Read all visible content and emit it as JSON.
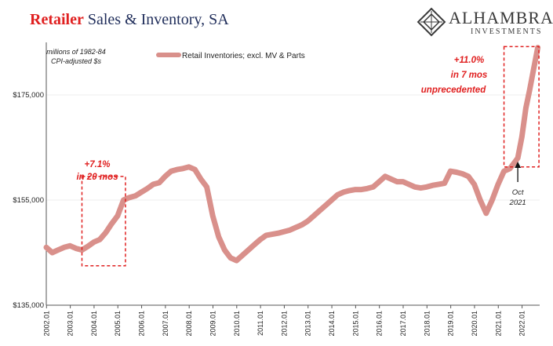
{
  "header": {
    "title_accent": "Retailer",
    "title_rest": " Sales & Inventory, SA",
    "logo_name": "ALHAMBRA",
    "logo_sub": "INVESTMENTS"
  },
  "chart_data": {
    "type": "line",
    "units_note_line1": "millions of 1982-84",
    "units_note_line2": "CPI-adjusted $s",
    "ylim": [
      135000,
      185000
    ],
    "y_ticks": [
      135000,
      155000,
      175000
    ],
    "y_tick_labels": [
      "$135,000",
      "$155,000",
      "$175,000"
    ],
    "x_ticks": [
      "2002.01",
      "2003.01",
      "2004.01",
      "2005.01",
      "2006.01",
      "2007.01",
      "2008.01",
      "2009.01",
      "2010.01",
      "2011.01",
      "2012.01",
      "2013.01",
      "2014.01",
      "2015.01",
      "2016.01",
      "2017.01",
      "2018.01",
      "2019.01",
      "2020.01",
      "2021.01",
      "2022.01"
    ],
    "series": [
      {
        "name": "Retail Inventories; excl. MV & Parts",
        "color": "#d9908b",
        "points": [
          [
            2002.0,
            146000
          ],
          [
            2002.25,
            145000
          ],
          [
            2002.5,
            145500
          ],
          [
            2002.75,
            146000
          ],
          [
            2003.0,
            146300
          ],
          [
            2003.25,
            145800
          ],
          [
            2003.5,
            145500
          ],
          [
            2003.75,
            146200
          ],
          [
            2004.0,
            147000
          ],
          [
            2004.25,
            147500
          ],
          [
            2004.5,
            148800
          ],
          [
            2004.75,
            150500
          ],
          [
            2005.0,
            152000
          ],
          [
            2005.25,
            155000
          ],
          [
            2005.5,
            155500
          ],
          [
            2005.75,
            155800
          ],
          [
            2006.0,
            156500
          ],
          [
            2006.25,
            157200
          ],
          [
            2006.5,
            158000
          ],
          [
            2006.75,
            158300
          ],
          [
            2007.0,
            159500
          ],
          [
            2007.25,
            160500
          ],
          [
            2007.5,
            160800
          ],
          [
            2007.75,
            161000
          ],
          [
            2008.0,
            161300
          ],
          [
            2008.25,
            160800
          ],
          [
            2008.5,
            159000
          ],
          [
            2008.75,
            157500
          ],
          [
            2009.0,
            152000
          ],
          [
            2009.25,
            148000
          ],
          [
            2009.5,
            145500
          ],
          [
            2009.75,
            144000
          ],
          [
            2010.0,
            143500
          ],
          [
            2010.25,
            144500
          ],
          [
            2010.5,
            145500
          ],
          [
            2010.75,
            146500
          ],
          [
            2011.0,
            147500
          ],
          [
            2011.25,
            148300
          ],
          [
            2011.5,
            148500
          ],
          [
            2011.75,
            148700
          ],
          [
            2012.0,
            149000
          ],
          [
            2012.25,
            149300
          ],
          [
            2012.5,
            149800
          ],
          [
            2012.75,
            150300
          ],
          [
            2013.0,
            151000
          ],
          [
            2013.25,
            152000
          ],
          [
            2013.5,
            153000
          ],
          [
            2013.75,
            154000
          ],
          [
            2014.0,
            155000
          ],
          [
            2014.25,
            156000
          ],
          [
            2014.5,
            156500
          ],
          [
            2014.75,
            156800
          ],
          [
            2015.0,
            157000
          ],
          [
            2015.25,
            157000
          ],
          [
            2015.5,
            157200
          ],
          [
            2015.75,
            157500
          ],
          [
            2016.0,
            158500
          ],
          [
            2016.25,
            159500
          ],
          [
            2016.5,
            159000
          ],
          [
            2016.75,
            158500
          ],
          [
            2017.0,
            158500
          ],
          [
            2017.25,
            158000
          ],
          [
            2017.5,
            157500
          ],
          [
            2017.75,
            157300
          ],
          [
            2018.0,
            157500
          ],
          [
            2018.25,
            157800
          ],
          [
            2018.5,
            158000
          ],
          [
            2018.75,
            158200
          ],
          [
            2019.0,
            160500
          ],
          [
            2019.25,
            160300
          ],
          [
            2019.5,
            160000
          ],
          [
            2019.75,
            159500
          ],
          [
            2020.0,
            158000
          ],
          [
            2020.25,
            155000
          ],
          [
            2020.5,
            152500
          ],
          [
            2020.75,
            155000
          ],
          [
            2021.0,
            158000
          ],
          [
            2021.25,
            160500
          ],
          [
            2021.5,
            161000
          ],
          [
            2021.75,
            162500
          ],
          [
            2021.83,
            163000
          ],
          [
            2022.0,
            167000
          ],
          [
            2022.17,
            172500
          ],
          [
            2022.33,
            176000
          ],
          [
            2022.5,
            180000
          ],
          [
            2022.67,
            184000
          ]
        ]
      }
    ],
    "annotations": {
      "box1_line1": "+7.1%",
      "box1_line2": "in 20 mos",
      "box2_line1": "+11.0%",
      "box2_line2": "in 7 mos",
      "box2_line3": "unprecedented",
      "oct_line1": "Oct",
      "oct_line2": "2021"
    },
    "grid": true,
    "legend_position": "top-left"
  }
}
